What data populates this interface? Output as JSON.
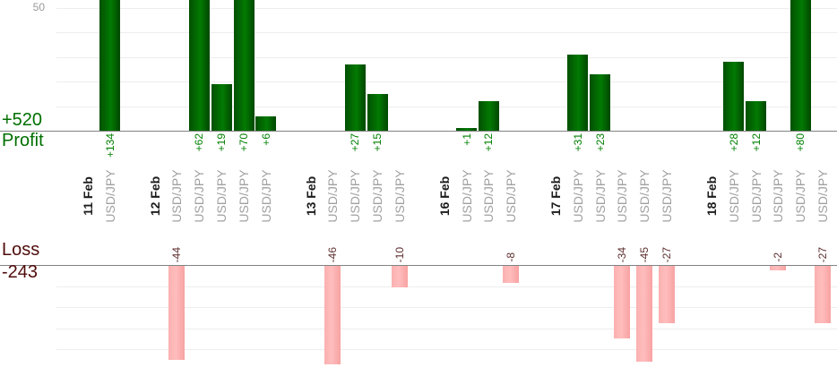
{
  "chart_data": {
    "type": "bar",
    "title": "",
    "y_axis": {
      "tick_label": "50",
      "tick_value": 50,
      "grid_step": 10,
      "grid": "on"
    },
    "profit_section": {
      "label": "Profit",
      "total_label": "+520",
      "total": 520
    },
    "loss_section": {
      "label": "Loss",
      "total_label": "-243",
      "total": -243
    },
    "groups": [
      {
        "date": "11 Feb",
        "trades": [
          {
            "pair": "USD/JPY",
            "value": 134,
            "label": "+134"
          }
        ]
      },
      {
        "date": "12 Feb",
        "trades": [
          {
            "pair": "USD/JPY",
            "value": -44,
            "label": "-44"
          },
          {
            "pair": "USD/JPY",
            "value": 62,
            "label": "+62"
          },
          {
            "pair": "USD/JPY",
            "value": 19,
            "label": "+19"
          },
          {
            "pair": "USD/JPY",
            "value": 70,
            "label": "+70"
          },
          {
            "pair": "USD/JPY",
            "value": 6,
            "label": "+6"
          }
        ]
      },
      {
        "date": "13 Feb",
        "trades": [
          {
            "pair": "USD/JPY",
            "value": -46,
            "label": "-46"
          },
          {
            "pair": "USD/JPY",
            "value": 27,
            "label": "+27"
          },
          {
            "pair": "USD/JPY",
            "value": 15,
            "label": "+15"
          },
          {
            "pair": "USD/JPY",
            "value": -10,
            "label": "-10"
          }
        ]
      },
      {
        "date": "16 Feb",
        "trades": [
          {
            "pair": "USD/JPY",
            "value": 1,
            "label": "+1"
          },
          {
            "pair": "USD/JPY",
            "value": 12,
            "label": "+12"
          },
          {
            "pair": "USD/JPY",
            "value": -8,
            "label": "-8"
          }
        ]
      },
      {
        "date": "17 Feb",
        "trades": [
          {
            "pair": "USD/JPY",
            "value": 31,
            "label": "+31"
          },
          {
            "pair": "USD/JPY",
            "value": 23,
            "label": "+23"
          },
          {
            "pair": "USD/JPY",
            "value": -34,
            "label": "-34"
          },
          {
            "pair": "USD/JPY",
            "value": -45,
            "label": "-45"
          },
          {
            "pair": "USD/JPY",
            "value": -27,
            "label": "-27"
          }
        ]
      },
      {
        "date": "18 Feb",
        "trades": [
          {
            "pair": "USD/JPY",
            "value": 28,
            "label": "+28"
          },
          {
            "pair": "USD/JPY",
            "value": 12,
            "label": "+12"
          },
          {
            "pair": "USD/JPY",
            "value": -2,
            "label": "-2"
          },
          {
            "pair": "USD/JPY",
            "value": 80,
            "label": "+80"
          },
          {
            "pair": "USD/JPY",
            "value": -27,
            "label": "-27"
          }
        ]
      }
    ],
    "colors": {
      "profit_bar": "#027a02",
      "loss_bar": "#ffb3b3",
      "profit_value_text": "#008000",
      "loss_value_text": "#5e2f2f",
      "profit_summary_text": "#006f00",
      "loss_summary_text": "#4f0b0b",
      "date_text": "#1c1c1c",
      "pair_text": "#a0a0a0",
      "tick_text": "#999999",
      "axis_line": "#828282",
      "grid_line": "#ededed"
    }
  }
}
